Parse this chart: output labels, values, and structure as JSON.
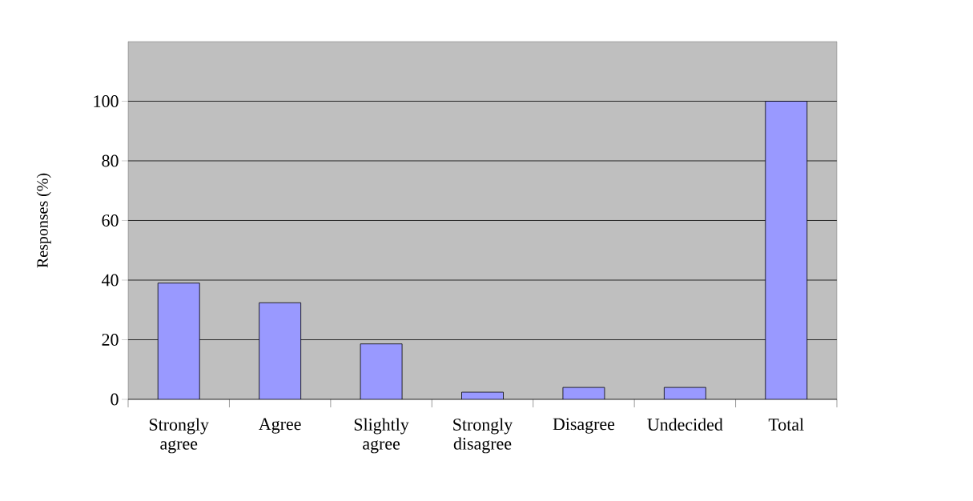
{
  "chart_data": {
    "type": "bar",
    "ylabel": "Responses (%)",
    "categories": [
      "Strongly agree",
      "Agree",
      "Slightly agree",
      "Strongly disagree",
      "Disagree",
      "Undecided",
      "Total"
    ],
    "values": [
      39.0,
      32.4,
      18.6,
      2.4,
      4.0,
      4.0,
      100
    ],
    "color": "#9999ff",
    "ylim": [
      0,
      120
    ],
    "yticks": [
      0,
      20,
      40,
      60,
      80,
      100
    ],
    "grid": "y"
  }
}
